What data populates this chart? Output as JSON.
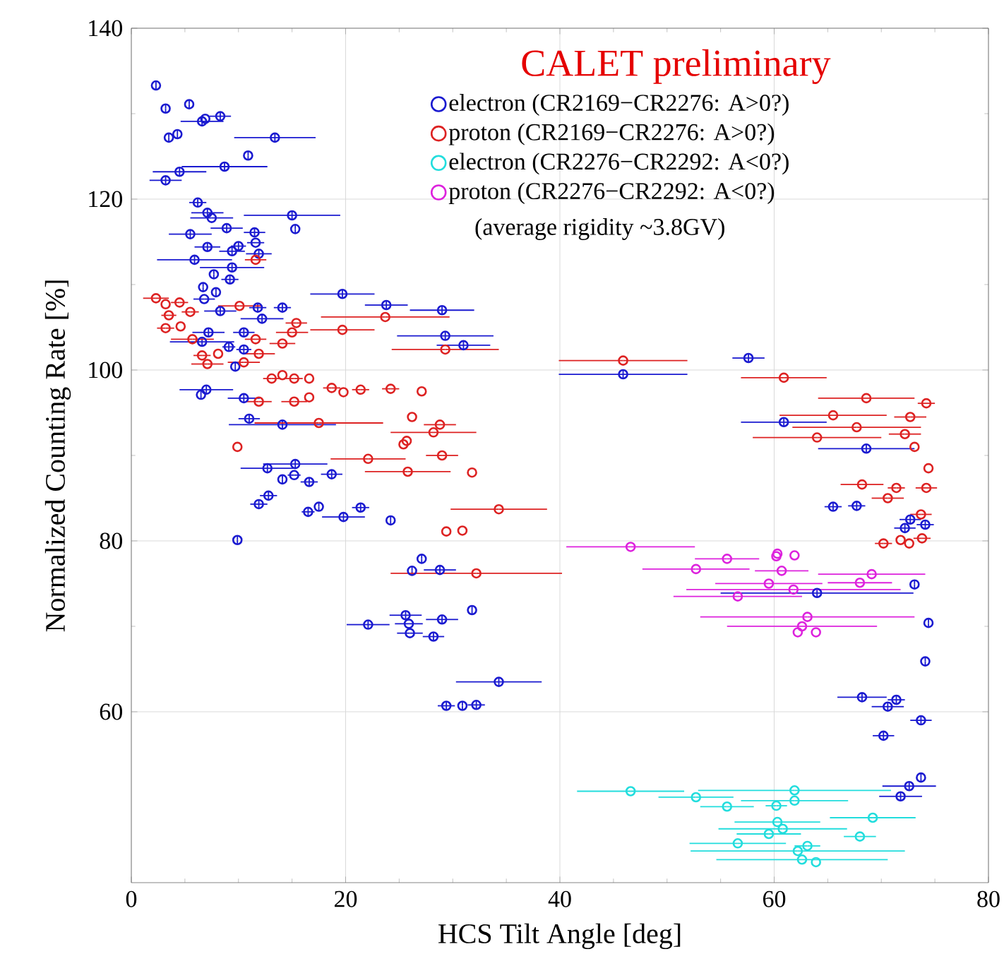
{
  "chart_data": {
    "type": "scatter",
    "title": "CALET preliminary",
    "xlabel": "HCS Tilt Angle [deg]",
    "ylabel": "Normalized Counting Rate [%]",
    "annotations": [
      "(average rigidity ~3.8GV)"
    ],
    "xlim": [
      0,
      80
    ],
    "xticks": [
      0,
      20,
      40,
      60,
      80
    ],
    "ylim": [
      40,
      140
    ],
    "yticks": [
      60,
      80,
      100,
      120,
      140
    ],
    "grid": true,
    "legend": "top right",
    "marker": "circle",
    "series": [
      {
        "name": "electron (CR2169−CR2276: A>0?)",
        "color": "#1a1ad0",
        "x": [
          2.3,
          3.2,
          5.4,
          6.6,
          6.9,
          8.3,
          3.5,
          4.3,
          13.4,
          10.9,
          8.7,
          4.5,
          3.2,
          6.2,
          7.1,
          7.5,
          15.0,
          15.3,
          5.5,
          8.9,
          11.5,
          7.1,
          10.0,
          11.6,
          9.4,
          11.9,
          5.9,
          9.4,
          7.7,
          9.2,
          6.7,
          7.9,
          19.7,
          23.8,
          29.0,
          11.8,
          14.1,
          8.3,
          6.8,
          12.2,
          29.3,
          31.0,
          6.6,
          7.2,
          10.5,
          9.1,
          10.5,
          9.7,
          6.5,
          7.0,
          10.5,
          11.0,
          14.1,
          12.7,
          15.3,
          14.1,
          15.2,
          16.6,
          18.7,
          12.8,
          11.9,
          16.5,
          17.5,
          19.8,
          21.4,
          24.2,
          9.9,
          27.1,
          26.2,
          28.8,
          31.8,
          25.6,
          25.9,
          29.0,
          22.1,
          26.0,
          28.2,
          34.3,
          29.4,
          30.9,
          32.2,
          57.6,
          45.9,
          60.9,
          68.6,
          65.5,
          67.7,
          72.7,
          74.1,
          72.2,
          73.1,
          64.0,
          74.4,
          74.1,
          68.2,
          71.4,
          70.6,
          73.7,
          70.2,
          73.7,
          72.6,
          71.8
        ],
        "values": [
          133.3,
          130.6,
          131.1,
          129.1,
          129.4,
          129.7,
          127.2,
          127.6,
          127.2,
          125.1,
          123.8,
          123.2,
          122.2,
          119.6,
          118.4,
          117.8,
          118.1,
          116.5,
          115.9,
          116.6,
          116.1,
          114.4,
          114.5,
          114.9,
          113.9,
          113.6,
          112.9,
          112.0,
          111.2,
          110.6,
          109.7,
          109.1,
          108.9,
          107.6,
          107.0,
          107.3,
          107.3,
          106.9,
          108.3,
          106.0,
          104.0,
          102.9,
          103.3,
          104.4,
          104.4,
          102.7,
          102.4,
          100.4,
          97.1,
          97.7,
          96.7,
          94.3,
          93.6,
          88.5,
          89.0,
          87.2,
          87.7,
          86.9,
          87.8,
          85.3,
          84.3,
          83.4,
          84.0,
          82.8,
          83.9,
          82.4,
          80.1,
          77.9,
          76.5,
          76.6,
          71.9,
          71.3,
          70.3,
          70.8,
          70.2,
          69.2,
          68.8,
          63.5,
          60.7,
          60.7,
          60.8,
          101.4,
          99.5,
          93.9,
          90.8,
          84.0,
          84.1,
          82.5,
          81.9,
          81.5,
          74.9,
          73.9,
          70.4,
          65.9,
          61.7,
          61.4,
          60.6,
          59.0,
          57.2,
          52.3,
          51.3,
          50.1
        ],
        "xerrors": [
          null,
          null,
          null,
          2.0,
          null,
          1.0,
          null,
          null,
          3.8,
          null,
          4.0,
          2.5,
          1.5,
          0.8,
          1.5,
          2.0,
          4.5,
          null,
          2.0,
          1.5,
          1.0,
          1.2,
          0.7,
          0.8,
          1.2,
          1.2,
          3.5,
          3.0,
          null,
          0.8,
          null,
          null,
          3.0,
          2.0,
          3.0,
          0.8,
          0.8,
          1.5,
          1.0,
          2.0,
          4.5,
          2.5,
          3.0,
          1.5,
          1.0,
          0.6,
          0.7,
          null,
          null,
          2.5,
          1.5,
          1.0,
          5.0,
          2.5,
          3.0,
          null,
          0.6,
          0.8,
          1.0,
          0.8,
          0.8,
          0.6,
          null,
          2.0,
          0.8,
          null,
          null,
          null,
          null,
          1.5,
          null,
          1.5,
          1.3,
          1.5,
          2.0,
          1.2,
          1.0,
          4.0,
          0.8,
          null,
          0.8,
          1.5,
          6.0,
          4.0,
          4.5,
          0.8,
          0.8,
          1.0,
          0.8,
          1.0,
          null,
          9.0,
          null,
          null,
          2.3,
          0.8,
          1.5,
          1.0,
          1.0,
          null,
          2.5,
          2.0
        ],
        "errors": [
          0.5,
          0.5,
          0.5,
          0.5,
          null,
          0.5,
          0.5,
          0.5,
          0.5,
          0.5,
          0.5,
          0.5,
          0.5,
          0.5,
          0.5,
          null,
          0.5,
          0.5,
          0.5,
          0.5,
          0.5,
          0.5,
          0.5,
          null,
          0.5,
          0.5,
          0.5,
          0.5,
          0.5,
          0.5,
          0.5,
          0.5,
          0.5,
          0.5,
          0.5,
          0.5,
          0.5,
          0.5,
          null,
          0.5,
          0.5,
          0.5,
          0.5,
          0.5,
          0.5,
          0.5,
          0.5,
          0.5,
          0.5,
          0.5,
          0.5,
          0.5,
          0.5,
          0.5,
          0.5,
          0.5,
          null,
          0.5,
          0.5,
          0.5,
          0.5,
          0.5,
          0.5,
          0.5,
          0.5,
          0.5,
          0.5,
          0.5,
          0.5,
          0.5,
          0.5,
          0.5,
          null,
          0.5,
          0.5,
          null,
          0.5,
          0.5,
          0.5,
          0.5,
          0.5,
          0.5,
          0.5,
          0.5,
          0.5,
          0.5,
          0.5,
          0.5,
          0.5,
          0.5,
          0.5,
          0.5,
          0.5,
          0.5,
          0.5,
          0.5,
          0.5,
          0.5,
          0.5,
          0.5,
          0.5,
          0.5
        ]
      },
      {
        "name": "proton (CR2169−CR2276: A>0?)",
        "color": "#dd2222",
        "x": [
          2.3,
          3.2,
          4.5,
          3.5,
          5.5,
          3.2,
          4.6,
          5.7,
          6.6,
          7.1,
          8.1,
          11.6,
          11.9,
          14.1,
          15.4,
          19.7,
          23.7,
          29.3,
          11.6,
          10.1,
          13.1,
          14.1,
          15.2,
          16.6,
          18.7,
          19.8,
          21.4,
          24.2,
          27.1,
          11.9,
          15.2,
          16.6,
          15.0,
          10.5,
          17.5,
          26.2,
          28.8,
          28.2,
          25.7,
          25.4,
          9.9,
          29.0,
          22.1,
          25.8,
          31.8,
          34.3,
          29.4,
          30.9,
          32.2,
          45.9,
          60.9,
          68.6,
          74.2,
          65.5,
          72.7,
          67.7,
          72.2,
          64.0,
          73.1,
          74.4,
          68.2,
          71.4,
          74.2,
          70.6,
          73.7,
          70.2,
          71.8,
          72.6,
          73.8
        ],
        "values": [
          108.4,
          107.7,
          107.9,
          106.4,
          106.8,
          104.9,
          105.1,
          103.6,
          101.7,
          100.7,
          101.9,
          103.6,
          101.9,
          103.1,
          105.5,
          104.7,
          106.2,
          102.4,
          112.9,
          107.5,
          99.0,
          99.4,
          99.0,
          99.0,
          97.9,
          97.4,
          97.7,
          97.8,
          97.5,
          96.3,
          96.3,
          96.8,
          104.4,
          100.9,
          93.8,
          94.5,
          93.6,
          92.7,
          91.7,
          91.3,
          91.0,
          90.0,
          89.6,
          88.1,
          88.0,
          83.7,
          81.1,
          81.2,
          76.2,
          101.1,
          99.1,
          96.7,
          96.1,
          94.7,
          94.5,
          93.3,
          92.5,
          92.1,
          91.0,
          88.5,
          86.6,
          86.2,
          86.2,
          85.0,
          83.1,
          79.7,
          80.1,
          79.7,
          80.3
        ],
        "xerrors": [
          1.2,
          null,
          0.8,
          0.7,
          0.8,
          0.8,
          null,
          2,
          0.8,
          1.5,
          null,
          1.0,
          1.5,
          1.2,
          1,
          3,
          6,
          5,
          1,
          2,
          0.8,
          null,
          0.8,
          null,
          0.8,
          null,
          0.8,
          0.8,
          null,
          1.2,
          1.2,
          null,
          1.5,
          1.5,
          6,
          null,
          1.5,
          4,
          null,
          null,
          null,
          1.5,
          3.5,
          4,
          null,
          4.5,
          null,
          null,
          8,
          6,
          4,
          4.5,
          0.8,
          5,
          1.5,
          6,
          1.5,
          6,
          null,
          null,
          2.0,
          0.8,
          1.0,
          1.5,
          1,
          0.8,
          null,
          null,
          0.8
        ]
      },
      {
        "name": "electron (CR2276−CR2292: A<0?)",
        "color": "#22dddd",
        "x": [
          46.6,
          52.7,
          61.9,
          61.9,
          55.6,
          60.2,
          69.2,
          60.3,
          60.8,
          59.5,
          68.0,
          56.6,
          63.1,
          62.2,
          62.6,
          63.9
        ],
        "values": [
          50.7,
          50.0,
          50.8,
          49.6,
          48.9,
          49.0,
          47.6,
          47.1,
          46.3,
          45.7,
          45.4,
          44.6,
          44.3,
          43.7,
          42.7,
          42.4
        ],
        "xerrors": [
          5,
          3.5,
          9,
          5,
          2.5,
          1.0,
          4,
          4,
          6,
          3,
          1.5,
          4.5,
          1.2,
          10,
          8,
          null
        ]
      },
      {
        "name": "proton (CR2276−CR2292: A<0?)",
        "color": "#dd22dd",
        "x": [
          46.6,
          55.6,
          60.3,
          60.2,
          61.9,
          52.7,
          60.7,
          69.1,
          59.5,
          68.0,
          61.8,
          56.6,
          63.1,
          62.6,
          62.2,
          63.9
        ],
        "values": [
          79.3,
          77.9,
          78.5,
          78.2,
          78.3,
          76.7,
          76.5,
          76.1,
          75.0,
          75.1,
          74.3,
          73.5,
          71.1,
          70.0,
          69.3,
          69.3
        ],
        "xerrors": [
          6,
          3,
          null,
          null,
          null,
          5,
          2.5,
          5,
          5,
          3,
          10,
          6,
          10,
          7,
          null,
          null
        ]
      }
    ]
  }
}
